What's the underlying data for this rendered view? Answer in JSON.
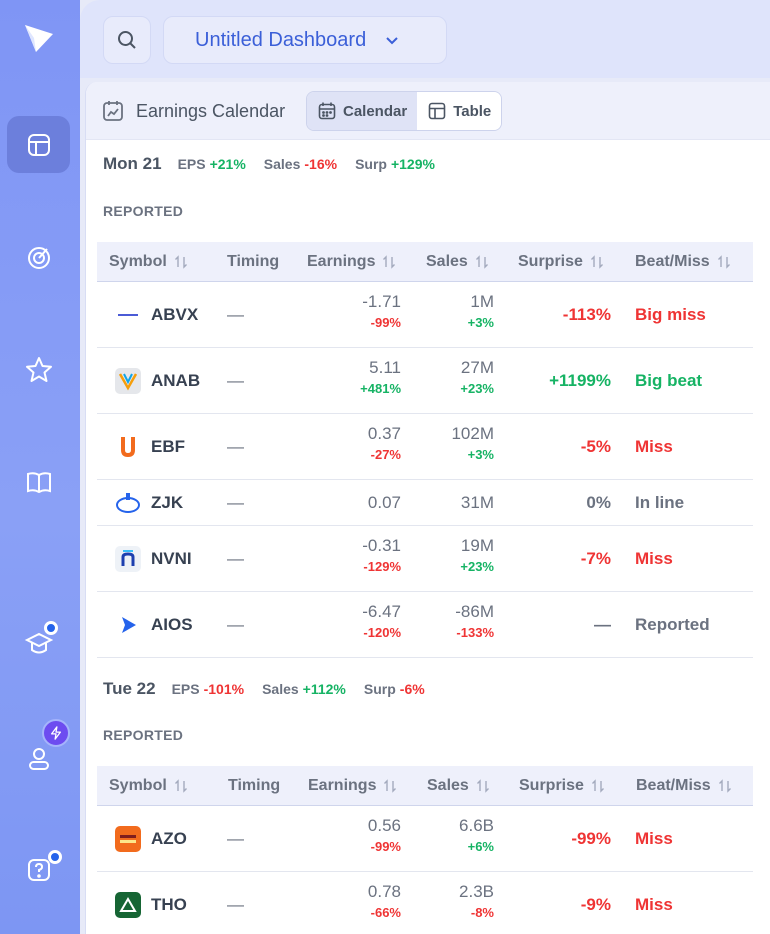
{
  "app": {
    "dashboard_title": "Untitled Dashboard"
  },
  "panel": {
    "title": "Earnings Calendar",
    "view_toggle": {
      "calendar_label": "Calendar",
      "table_label": "Table",
      "selected": "Calendar"
    }
  },
  "columns": [
    "Symbol",
    "Timing",
    "Earnings",
    "Sales",
    "Surprise",
    "Beat/Miss"
  ],
  "days": [
    {
      "date": "Mon 21",
      "eps_label": "EPS",
      "eps": "+21%",
      "sales_label": "Sales",
      "sales": "-16%",
      "surp_label": "Surp",
      "surp": "+129%",
      "section": "REPORTED",
      "rows": [
        {
          "symbol": "ABVX",
          "timing": "—",
          "earnings": "-1.71",
          "earnings_change": "-99%",
          "sales": "1M",
          "sales_change": "+3%",
          "surprise": "-113%",
          "result": "Big miss"
        },
        {
          "symbol": "ANAB",
          "timing": "—",
          "earnings": "5.11",
          "earnings_change": "+481%",
          "sales": "27M",
          "sales_change": "+23%",
          "surprise": "+1199%",
          "result": "Big beat"
        },
        {
          "symbol": "EBF",
          "timing": "—",
          "earnings": "0.37",
          "earnings_change": "-27%",
          "sales": "102M",
          "sales_change": "+3%",
          "surprise": "-5%",
          "result": "Miss"
        },
        {
          "symbol": "ZJK",
          "timing": "—",
          "earnings": "0.07",
          "earnings_change": "",
          "sales": "31M",
          "sales_change": "",
          "surprise": "0%",
          "result": "In line"
        },
        {
          "symbol": "NVNI",
          "timing": "—",
          "earnings": "-0.31",
          "earnings_change": "-129%",
          "sales": "19M",
          "sales_change": "+23%",
          "surprise": "-7%",
          "result": "Miss"
        },
        {
          "symbol": "AIOS",
          "timing": "—",
          "earnings": "-6.47",
          "earnings_change": "-120%",
          "sales": "-86M",
          "sales_change": "-133%",
          "surprise": "—",
          "result": "Reported"
        }
      ]
    },
    {
      "date": "Tue 22",
      "eps_label": "EPS",
      "eps": "-101%",
      "sales_label": "Sales",
      "sales": "+112%",
      "surp_label": "Surp",
      "surp": "-6%",
      "section": "REPORTED",
      "rows": [
        {
          "symbol": "AZO",
          "timing": "—",
          "earnings": "0.56",
          "earnings_change": "-99%",
          "sales": "6.6B",
          "sales_change": "+6%",
          "surprise": "-99%",
          "result": "Miss"
        },
        {
          "symbol": "THO",
          "timing": "—",
          "earnings": "0.78",
          "earnings_change": "-66%",
          "sales": "2.3B",
          "sales_change": "-8%",
          "surprise": "-9%",
          "result": "Miss"
        }
      ]
    }
  ],
  "colors": {
    "positive": "#16b364",
    "negative": "#ef3434",
    "accent": "#3b5fd8",
    "neutral": "#6b7280"
  },
  "icons": {
    "sidebar": [
      "logo-icon",
      "dashboard-icon",
      "radar-icon",
      "star-icon",
      "book-icon",
      "graduation-cap-icon",
      "user-icon",
      "help-icon"
    ]
  }
}
